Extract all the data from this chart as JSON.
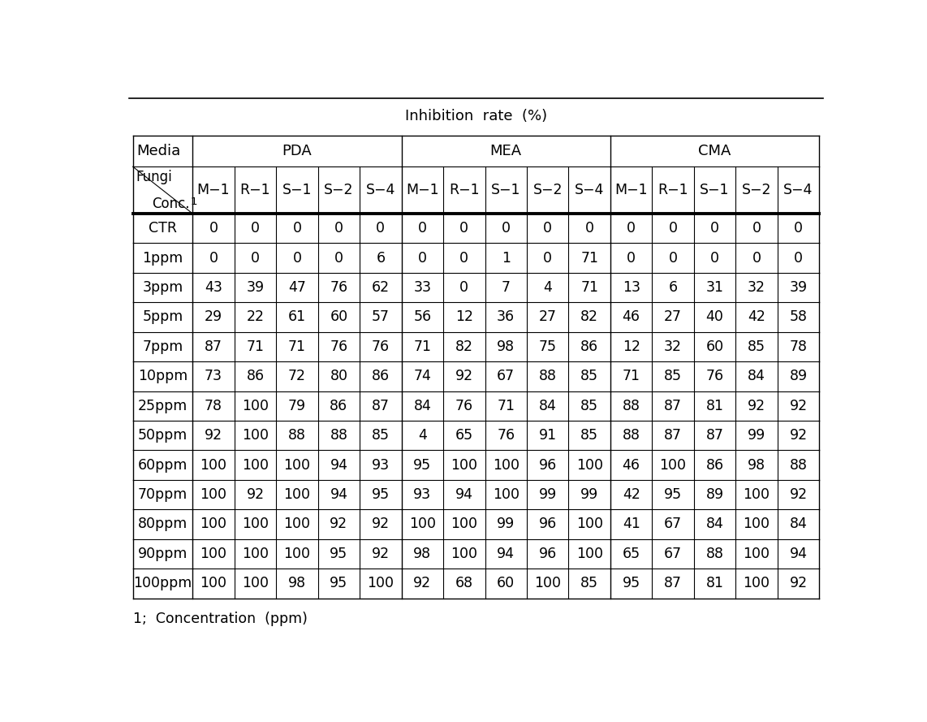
{
  "title": "Inhibition  rate  (%)",
  "media_groups": [
    "PDA",
    "MEA",
    "CMA"
  ],
  "fungi_cols": [
    "M−1",
    "R−1",
    "S−1",
    "S−2",
    "S−4",
    "M−1",
    "R−1",
    "S−1",
    "S−2",
    "S−4",
    "M−1",
    "R−1",
    "S−1",
    "S−2",
    "S−4"
  ],
  "conc_rows": [
    "CTR",
    "1ppm",
    "3ppm",
    "5ppm",
    "7ppm",
    "10ppm",
    "25ppm",
    "50ppm",
    "60ppm",
    "70ppm",
    "80ppm",
    "90ppm",
    "100ppm"
  ],
  "data": [
    [
      0,
      0,
      0,
      0,
      0,
      0,
      0,
      0,
      0,
      0,
      0,
      0,
      0,
      0,
      0
    ],
    [
      0,
      0,
      0,
      0,
      6,
      0,
      0,
      1,
      0,
      71,
      0,
      0,
      0,
      0,
      0
    ],
    [
      43,
      39,
      47,
      76,
      62,
      33,
      0,
      7,
      4,
      71,
      13,
      6,
      31,
      32,
      39
    ],
    [
      29,
      22,
      61,
      60,
      57,
      56,
      12,
      36,
      27,
      82,
      46,
      27,
      40,
      42,
      58
    ],
    [
      87,
      71,
      71,
      76,
      76,
      71,
      82,
      98,
      75,
      86,
      12,
      32,
      60,
      85,
      78
    ],
    [
      73,
      86,
      72,
      80,
      86,
      74,
      92,
      67,
      88,
      85,
      71,
      85,
      76,
      84,
      89
    ],
    [
      78,
      100,
      79,
      86,
      87,
      84,
      76,
      71,
      84,
      85,
      88,
      87,
      81,
      92,
      92
    ],
    [
      92,
      100,
      88,
      88,
      85,
      4,
      65,
      76,
      91,
      85,
      88,
      87,
      87,
      99,
      92
    ],
    [
      100,
      100,
      100,
      94,
      93,
      95,
      100,
      100,
      96,
      100,
      46,
      100,
      86,
      98,
      88
    ],
    [
      100,
      92,
      100,
      94,
      95,
      93,
      94,
      100,
      99,
      99,
      42,
      95,
      89,
      100,
      92
    ],
    [
      100,
      100,
      100,
      92,
      92,
      100,
      100,
      99,
      96,
      100,
      41,
      67,
      84,
      100,
      84
    ],
    [
      100,
      100,
      100,
      95,
      92,
      98,
      100,
      94,
      96,
      100,
      65,
      67,
      88,
      100,
      94
    ],
    [
      100,
      100,
      98,
      95,
      100,
      92,
      68,
      60,
      100,
      85,
      95,
      87,
      81,
      100,
      92
    ]
  ],
  "footnote": "1;  Concentration  (ppm)",
  "bg_color": "#ffffff",
  "text_color": "#000000",
  "line_color": "#000000",
  "font_size": 12.5,
  "header_font_size": 13,
  "title_font_size": 13
}
